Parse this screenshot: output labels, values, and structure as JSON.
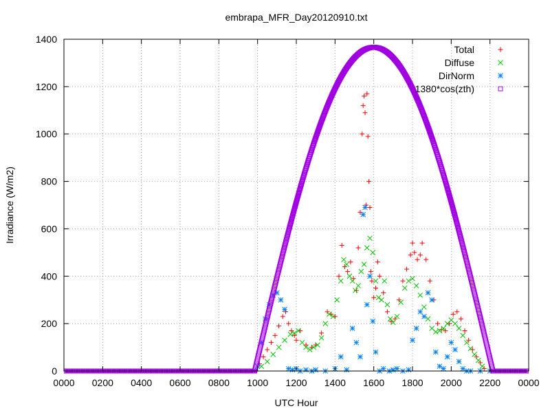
{
  "chart_data": {
    "type": "scatter",
    "title": "embrapa_MFR_Day20120910.txt",
    "xlabel": "UTC Hour",
    "ylabel": "Irradiance (W/m2)",
    "xlim": [
      0,
      24
    ],
    "ylim": [
      0,
      1400
    ],
    "x_ticks": [
      0,
      2,
      4,
      6,
      8,
      10,
      12,
      14,
      16,
      18,
      20,
      22,
      24
    ],
    "x_tick_labels": [
      "0000",
      "0200",
      "0400",
      "0600",
      "0800",
      "1000",
      "1200",
      "1400",
      "1600",
      "1800",
      "2000",
      "2200",
      "0000"
    ],
    "y_ticks": [
      0,
      200,
      400,
      600,
      800,
      1000,
      1200,
      1400
    ],
    "y_tick_labels": [
      "0",
      "200",
      "400",
      "600",
      "800",
      "1000",
      "1200",
      "1400"
    ],
    "grid": true,
    "legend_position": "top-right",
    "series": [
      {
        "name": "Total",
        "color": "#ff0000",
        "marker": "plus",
        "points": [
          [
            10.1,
            30
          ],
          [
            10.3,
            60
          ],
          [
            10.5,
            90
          ],
          [
            10.7,
            120
          ],
          [
            10.9,
            150
          ],
          [
            11.1,
            190
          ],
          [
            11.3,
            230
          ],
          [
            11.45,
            250
          ],
          [
            11.6,
            200
          ],
          [
            11.75,
            170
          ],
          [
            11.9,
            150
          ],
          [
            12.0,
            130
          ],
          [
            12.2,
            170
          ],
          [
            12.5,
            110
          ],
          [
            12.8,
            100
          ],
          [
            13.0,
            110
          ],
          [
            13.3,
            160
          ],
          [
            13.6,
            250
          ],
          [
            13.8,
            240
          ],
          [
            14.0,
            230
          ],
          [
            14.2,
            400
          ],
          [
            14.35,
            530
          ],
          [
            14.5,
            440
          ],
          [
            14.65,
            420
          ],
          [
            14.8,
            460
          ],
          [
            14.95,
            390
          ],
          [
            15.1,
            340
          ],
          [
            15.2,
            520
          ],
          [
            15.3,
            670
          ],
          [
            15.4,
            1000
          ],
          [
            15.45,
            1120
          ],
          [
            15.5,
            1160
          ],
          [
            15.55,
            1090
          ],
          [
            15.6,
            700
          ],
          [
            15.65,
            1170
          ],
          [
            15.7,
            990
          ],
          [
            15.75,
            800
          ],
          [
            15.8,
            690
          ],
          [
            15.85,
            420
          ],
          [
            15.9,
            380
          ],
          [
            16.0,
            310
          ],
          [
            16.1,
            350
          ],
          [
            16.2,
            460
          ],
          [
            16.3,
            400
          ],
          [
            16.5,
            330
          ],
          [
            16.7,
            250
          ],
          [
            16.9,
            210
          ],
          [
            17.1,
            220
          ],
          [
            17.3,
            300
          ],
          [
            17.5,
            380
          ],
          [
            17.7,
            430
          ],
          [
            17.9,
            490
          ],
          [
            18.0,
            540
          ],
          [
            18.1,
            500
          ],
          [
            18.25,
            470
          ],
          [
            18.4,
            490
          ],
          [
            18.5,
            540
          ],
          [
            18.7,
            470
          ],
          [
            18.9,
            380
          ],
          [
            19.1,
            300
          ],
          [
            19.3,
            200
          ],
          [
            19.5,
            175
          ],
          [
            19.7,
            170
          ],
          [
            19.9,
            200
          ],
          [
            20.1,
            240
          ],
          [
            20.3,
            250
          ],
          [
            20.5,
            220
          ],
          [
            20.7,
            170
          ],
          [
            20.9,
            130
          ],
          [
            21.1,
            90
          ],
          [
            21.3,
            60
          ],
          [
            21.5,
            35
          ],
          [
            21.7,
            10
          ]
        ]
      },
      {
        "name": "Diffuse",
        "color": "#00c000",
        "marker": "cross",
        "points": [
          [
            10.2,
            20
          ],
          [
            10.5,
            40
          ],
          [
            10.8,
            70
          ],
          [
            11.1,
            100
          ],
          [
            11.4,
            130
          ],
          [
            11.7,
            155
          ],
          [
            11.9,
            160
          ],
          [
            12.1,
            170
          ],
          [
            12.3,
            120
          ],
          [
            12.5,
            100
          ],
          [
            12.7,
            90
          ],
          [
            12.9,
            100
          ],
          [
            13.1,
            110
          ],
          [
            13.3,
            140
          ],
          [
            13.5,
            200
          ],
          [
            13.7,
            240
          ],
          [
            13.9,
            230
          ],
          [
            14.1,
            300
          ],
          [
            14.3,
            380
          ],
          [
            14.45,
            470
          ],
          [
            14.6,
            450
          ],
          [
            14.75,
            400
          ],
          [
            14.9,
            380
          ],
          [
            15.05,
            340
          ],
          [
            15.2,
            360
          ],
          [
            15.35,
            420
          ],
          [
            15.5,
            450
          ],
          [
            15.65,
            520
          ],
          [
            15.8,
            560
          ],
          [
            15.95,
            500
          ],
          [
            16.1,
            380
          ],
          [
            16.25,
            310
          ],
          [
            16.4,
            300
          ],
          [
            16.55,
            380
          ],
          [
            16.7,
            280
          ],
          [
            16.85,
            220
          ],
          [
            17.0,
            205
          ],
          [
            17.2,
            230
          ],
          [
            17.4,
            290
          ],
          [
            17.6,
            350
          ],
          [
            17.8,
            380
          ],
          [
            18.0,
            390
          ],
          [
            18.2,
            360
          ],
          [
            18.4,
            320
          ],
          [
            18.6,
            270
          ],
          [
            18.8,
            220
          ],
          [
            19.0,
            180
          ],
          [
            19.2,
            165
          ],
          [
            19.4,
            170
          ],
          [
            19.6,
            180
          ],
          [
            19.8,
            200
          ],
          [
            20.0,
            215
          ],
          [
            20.2,
            200
          ],
          [
            20.4,
            180
          ],
          [
            20.6,
            150
          ],
          [
            20.8,
            120
          ],
          [
            21.0,
            95
          ],
          [
            21.2,
            70
          ],
          [
            21.4,
            45
          ],
          [
            21.6,
            20
          ]
        ]
      },
      {
        "name": "DirNorm",
        "color": "#0080ff",
        "marker": "star",
        "points": [
          [
            10.0,
            20
          ],
          [
            10.2,
            120
          ],
          [
            10.4,
            220
          ],
          [
            10.6,
            280
          ],
          [
            10.8,
            320
          ],
          [
            11.0,
            330
          ],
          [
            11.2,
            300
          ],
          [
            11.4,
            260
          ],
          [
            11.6,
            10
          ],
          [
            11.8,
            5
          ],
          [
            12.0,
            10
          ],
          [
            12.2,
            0
          ],
          [
            12.5,
            5
          ],
          [
            12.8,
            0
          ],
          [
            13.0,
            5
          ],
          [
            13.5,
            0
          ],
          [
            14.0,
            10
          ],
          [
            14.3,
            60
          ],
          [
            14.6,
            5
          ],
          [
            14.9,
            180
          ],
          [
            15.1,
            120
          ],
          [
            15.3,
            60
          ],
          [
            15.45,
            660
          ],
          [
            15.55,
            690
          ],
          [
            15.65,
            280
          ],
          [
            15.8,
            400
          ],
          [
            15.95,
            210
          ],
          [
            16.1,
            80
          ],
          [
            16.3,
            0
          ],
          [
            16.5,
            10
          ],
          [
            16.8,
            0
          ],
          [
            17.0,
            5
          ],
          [
            17.2,
            10
          ],
          [
            17.5,
            0
          ],
          [
            17.8,
            5
          ],
          [
            18.0,
            130
          ],
          [
            18.2,
            180
          ],
          [
            18.4,
            250
          ],
          [
            18.6,
            230
          ],
          [
            18.8,
            330
          ],
          [
            19.0,
            300
          ],
          [
            19.2,
            80
          ],
          [
            19.4,
            20
          ],
          [
            19.6,
            10
          ],
          [
            19.8,
            60
          ],
          [
            20.0,
            120
          ],
          [
            20.2,
            90
          ],
          [
            20.4,
            40
          ],
          [
            20.6,
            10
          ],
          [
            20.8,
            0
          ],
          [
            21.0,
            0
          ],
          [
            21.5,
            0
          ],
          [
            22.0,
            0
          ]
        ]
      },
      {
        "name": "1380*cos(zth)",
        "color": "#a000e0",
        "marker": "square",
        "curve": {
          "amplitude": 1366,
          "center": 16.0,
          "half_width": 6.15
        },
        "baseline_range": [
          0,
          24
        ]
      }
    ]
  }
}
